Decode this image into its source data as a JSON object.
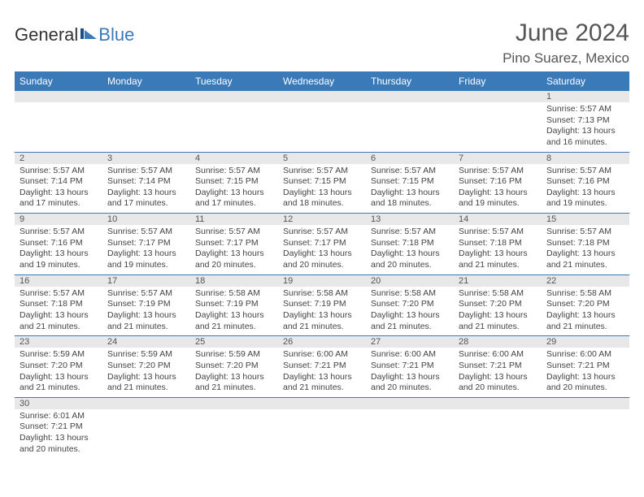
{
  "logo": {
    "part1": "General",
    "part2": "Blue"
  },
  "header": {
    "title": "June 2024",
    "location": "Pino Suarez, Mexico"
  },
  "colors": {
    "accent": "#3a7ab8",
    "header_text": "#ffffff",
    "daynum_bg": "#e8e8e8",
    "body_text": "#444444",
    "title_text": "#555555"
  },
  "day_headers": [
    "Sunday",
    "Monday",
    "Tuesday",
    "Wednesday",
    "Thursday",
    "Friday",
    "Saturday"
  ],
  "weeks": [
    {
      "nums": [
        "",
        "",
        "",
        "",
        "",
        "",
        "1"
      ],
      "cells": [
        null,
        null,
        null,
        null,
        null,
        null,
        {
          "sunrise": "5:57 AM",
          "sunset": "7:13 PM",
          "dl_h": "13",
          "dl_m": "16"
        }
      ]
    },
    {
      "nums": [
        "2",
        "3",
        "4",
        "5",
        "6",
        "7",
        "8"
      ],
      "cells": [
        {
          "sunrise": "5:57 AM",
          "sunset": "7:14 PM",
          "dl_h": "13",
          "dl_m": "17"
        },
        {
          "sunrise": "5:57 AM",
          "sunset": "7:14 PM",
          "dl_h": "13",
          "dl_m": "17"
        },
        {
          "sunrise": "5:57 AM",
          "sunset": "7:15 PM",
          "dl_h": "13",
          "dl_m": "17"
        },
        {
          "sunrise": "5:57 AM",
          "sunset": "7:15 PM",
          "dl_h": "13",
          "dl_m": "18"
        },
        {
          "sunrise": "5:57 AM",
          "sunset": "7:15 PM",
          "dl_h": "13",
          "dl_m": "18"
        },
        {
          "sunrise": "5:57 AM",
          "sunset": "7:16 PM",
          "dl_h": "13",
          "dl_m": "19"
        },
        {
          "sunrise": "5:57 AM",
          "sunset": "7:16 PM",
          "dl_h": "13",
          "dl_m": "19"
        }
      ]
    },
    {
      "nums": [
        "9",
        "10",
        "11",
        "12",
        "13",
        "14",
        "15"
      ],
      "cells": [
        {
          "sunrise": "5:57 AM",
          "sunset": "7:16 PM",
          "dl_h": "13",
          "dl_m": "19"
        },
        {
          "sunrise": "5:57 AM",
          "sunset": "7:17 PM",
          "dl_h": "13",
          "dl_m": "19"
        },
        {
          "sunrise": "5:57 AM",
          "sunset": "7:17 PM",
          "dl_h": "13",
          "dl_m": "20"
        },
        {
          "sunrise": "5:57 AM",
          "sunset": "7:17 PM",
          "dl_h": "13",
          "dl_m": "20"
        },
        {
          "sunrise": "5:57 AM",
          "sunset": "7:18 PM",
          "dl_h": "13",
          "dl_m": "20"
        },
        {
          "sunrise": "5:57 AM",
          "sunset": "7:18 PM",
          "dl_h": "13",
          "dl_m": "21"
        },
        {
          "sunrise": "5:57 AM",
          "sunset": "7:18 PM",
          "dl_h": "13",
          "dl_m": "21"
        }
      ]
    },
    {
      "nums": [
        "16",
        "17",
        "18",
        "19",
        "20",
        "21",
        "22"
      ],
      "cells": [
        {
          "sunrise": "5:57 AM",
          "sunset": "7:18 PM",
          "dl_h": "13",
          "dl_m": "21"
        },
        {
          "sunrise": "5:57 AM",
          "sunset": "7:19 PM",
          "dl_h": "13",
          "dl_m": "21"
        },
        {
          "sunrise": "5:58 AM",
          "sunset": "7:19 PM",
          "dl_h": "13",
          "dl_m": "21"
        },
        {
          "sunrise": "5:58 AM",
          "sunset": "7:19 PM",
          "dl_h": "13",
          "dl_m": "21"
        },
        {
          "sunrise": "5:58 AM",
          "sunset": "7:20 PM",
          "dl_h": "13",
          "dl_m": "21"
        },
        {
          "sunrise": "5:58 AM",
          "sunset": "7:20 PM",
          "dl_h": "13",
          "dl_m": "21"
        },
        {
          "sunrise": "5:58 AM",
          "sunset": "7:20 PM",
          "dl_h": "13",
          "dl_m": "21"
        }
      ]
    },
    {
      "nums": [
        "23",
        "24",
        "25",
        "26",
        "27",
        "28",
        "29"
      ],
      "cells": [
        {
          "sunrise": "5:59 AM",
          "sunset": "7:20 PM",
          "dl_h": "13",
          "dl_m": "21"
        },
        {
          "sunrise": "5:59 AM",
          "sunset": "7:20 PM",
          "dl_h": "13",
          "dl_m": "21"
        },
        {
          "sunrise": "5:59 AM",
          "sunset": "7:20 PM",
          "dl_h": "13",
          "dl_m": "21"
        },
        {
          "sunrise": "6:00 AM",
          "sunset": "7:21 PM",
          "dl_h": "13",
          "dl_m": "21"
        },
        {
          "sunrise": "6:00 AM",
          "sunset": "7:21 PM",
          "dl_h": "13",
          "dl_m": "20"
        },
        {
          "sunrise": "6:00 AM",
          "sunset": "7:21 PM",
          "dl_h": "13",
          "dl_m": "20"
        },
        {
          "sunrise": "6:00 AM",
          "sunset": "7:21 PM",
          "dl_h": "13",
          "dl_m": "20"
        }
      ]
    },
    {
      "nums": [
        "30",
        "",
        "",
        "",
        "",
        "",
        ""
      ],
      "cells": [
        {
          "sunrise": "6:01 AM",
          "sunset": "7:21 PM",
          "dl_h": "13",
          "dl_m": "20"
        },
        null,
        null,
        null,
        null,
        null,
        null
      ]
    }
  ],
  "labels": {
    "sunrise_prefix": "Sunrise: ",
    "sunset_prefix": "Sunset: ",
    "daylight_prefix": "Daylight: ",
    "hours_word": " hours",
    "and_word": "and ",
    "minutes_word": " minutes."
  }
}
